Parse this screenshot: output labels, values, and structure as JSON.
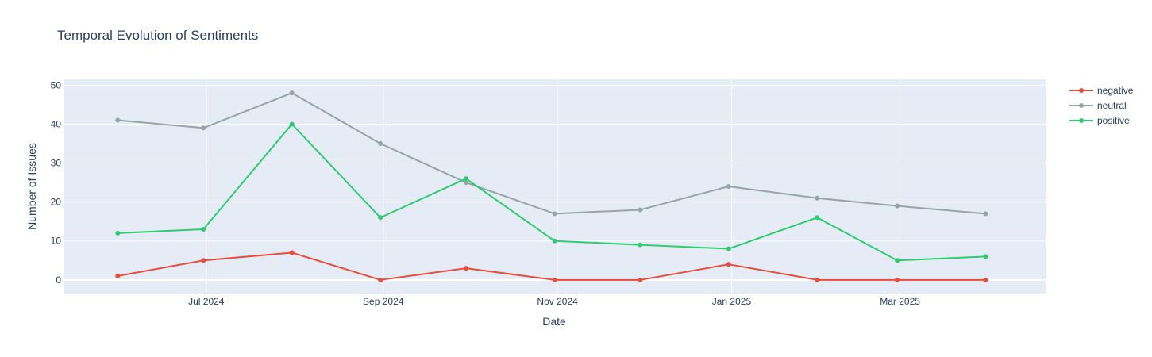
{
  "chart_data": {
    "type": "line",
    "title": "Temporal Evolution of Sentiments",
    "xlabel": "Date",
    "ylabel": "Number of Issues",
    "x": [
      "2024-05-31",
      "2024-06-30",
      "2024-07-31",
      "2024-08-31",
      "2024-09-30",
      "2024-10-31",
      "2024-11-30",
      "2024-12-31",
      "2025-01-31",
      "2025-02-28",
      "2025-03-31"
    ],
    "x_ticks": [
      {
        "date": "2024-07-01",
        "label": "Jul 2024"
      },
      {
        "date": "2024-09-01",
        "label": "Sep 2024"
      },
      {
        "date": "2024-11-01",
        "label": "Nov 2024"
      },
      {
        "date": "2025-01-01",
        "label": "Jan 2025"
      },
      {
        "date": "2025-03-01",
        "label": "Mar 2025"
      }
    ],
    "y_ticks": [
      0,
      10,
      20,
      30,
      40,
      50
    ],
    "ylim": [
      -3.5,
      51.5
    ],
    "xlim": [
      "2024-05-12",
      "2025-04-21"
    ],
    "grid": true,
    "legend_position": "top-right",
    "series": [
      {
        "name": "negative",
        "color": "#e74c3c",
        "values": [
          1,
          5,
          7,
          0,
          3,
          0,
          0,
          4,
          0,
          0,
          0
        ]
      },
      {
        "name": "neutral",
        "color": "#95a5a6",
        "values": [
          41,
          39,
          48,
          35,
          25,
          17,
          18,
          24,
          21,
          19,
          17
        ]
      },
      {
        "name": "positive",
        "color": "#2ecc71",
        "values": [
          12,
          13,
          40,
          16,
          26,
          10,
          9,
          8,
          16,
          5,
          6
        ]
      }
    ]
  }
}
